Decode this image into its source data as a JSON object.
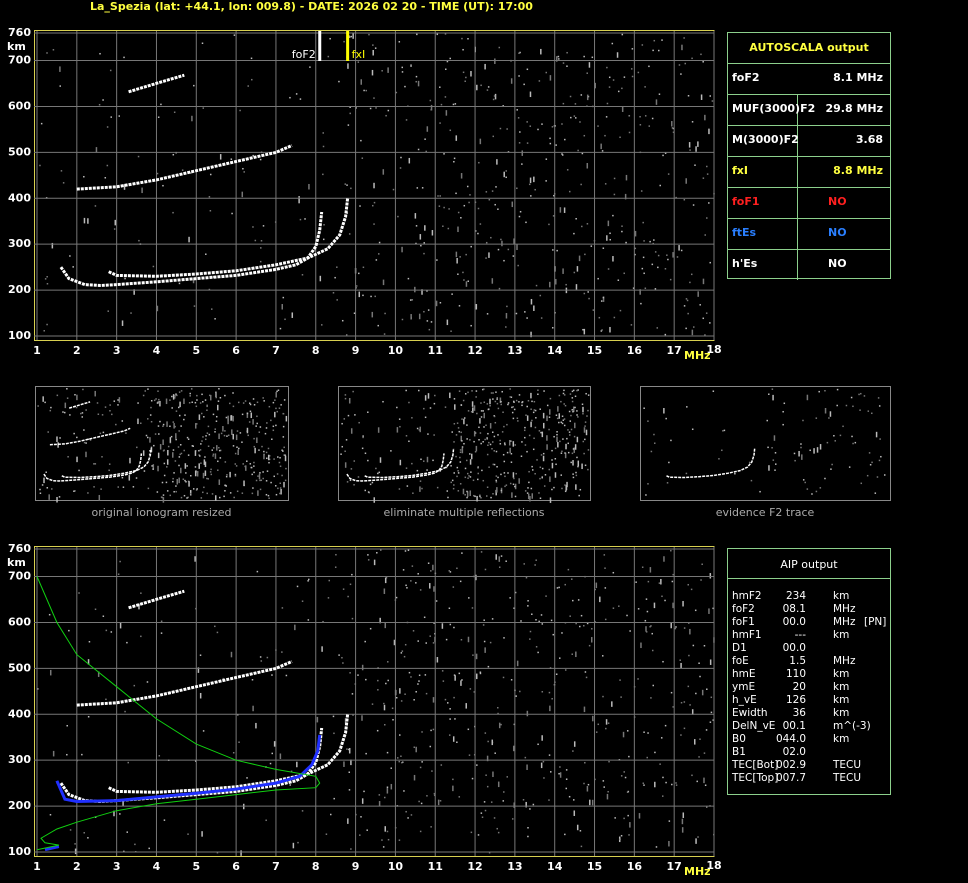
{
  "header": {
    "title": "La_Spezia (lat: +44.1, lon: 009.8) - DATE: 2026 02 20 - TIME (UT): 17:00"
  },
  "chart_data": [
    {
      "type": "line",
      "x_label": "MHz",
      "y_label": "km",
      "xlim": [
        1,
        18
      ],
      "ylim": [
        100,
        760
      ],
      "xticks": [
        1,
        2,
        3,
        4,
        5,
        6,
        7,
        8,
        9,
        10,
        11,
        12,
        13,
        14,
        15,
        16,
        17,
        18
      ],
      "yticks": [
        100,
        200,
        300,
        400,
        500,
        600,
        700,
        760
      ],
      "grid": true,
      "markers": [
        {
          "label": "foF2",
          "x": 8.1,
          "color": "#ffffff"
        },
        {
          "label": "fxI",
          "x": 8.8,
          "color": "#ffff00"
        }
      ],
      "series": [
        {
          "color": "#ffffff",
          "x": [
            1.6,
            1.8,
            2.2,
            2.6,
            3,
            4,
            5,
            6,
            7,
            7.5,
            7.8,
            8,
            8.1,
            8.15
          ],
          "values": [
            250,
            225,
            212,
            210,
            212,
            218,
            225,
            232,
            245,
            255,
            270,
            295,
            330,
            370
          ]
        },
        {
          "color": "#ffffff",
          "x": [
            2.8,
            3,
            4,
            5,
            6,
            7,
            7.8,
            8.3,
            8.6,
            8.75,
            8.8
          ],
          "values": [
            240,
            232,
            230,
            235,
            242,
            255,
            270,
            290,
            320,
            360,
            400
          ]
        },
        {
          "color": "#ffffff",
          "x": [
            2,
            3,
            4,
            5,
            6,
            7,
            7.4
          ],
          "values": [
            420,
            425,
            440,
            460,
            480,
            500,
            515
          ]
        },
        {
          "color": "#ffffff",
          "x": [
            3.3,
            3.8,
            4.3,
            4.7
          ],
          "values": [
            632,
            645,
            658,
            668
          ]
        }
      ]
    },
    {
      "type": "line",
      "x_label": "MHz",
      "y_label": "km",
      "xlim": [
        1,
        18
      ],
      "ylim": [
        100,
        760
      ],
      "xticks": [
        1,
        2,
        3,
        4,
        5,
        6,
        7,
        8,
        9,
        10,
        11,
        12,
        13,
        14,
        15,
        16,
        17,
        18
      ],
      "yticks": [
        100,
        200,
        300,
        400,
        500,
        600,
        700,
        760
      ],
      "grid": true,
      "series": [
        {
          "color": "#ffffff",
          "x": [
            1.6,
            1.8,
            2.2,
            2.6,
            3,
            4,
            5,
            6,
            7,
            7.5,
            7.8,
            8,
            8.1,
            8.15
          ],
          "values": [
            250,
            225,
            212,
            210,
            212,
            218,
            225,
            232,
            245,
            255,
            270,
            295,
            330,
            370
          ]
        },
        {
          "color": "#ffffff",
          "x": [
            2.8,
            3,
            4,
            5,
            6,
            7,
            7.8,
            8.3,
            8.6,
            8.75,
            8.8
          ],
          "values": [
            240,
            232,
            230,
            235,
            242,
            255,
            270,
            290,
            320,
            360,
            400
          ]
        },
        {
          "color": "#ffffff",
          "x": [
            2,
            3,
            4,
            5,
            6,
            7,
            7.4
          ],
          "values": [
            420,
            425,
            440,
            460,
            480,
            500,
            515
          ]
        },
        {
          "color": "#ffffff",
          "x": [
            3.3,
            3.8,
            4.3,
            4.7
          ],
          "values": [
            632,
            645,
            658,
            668
          ]
        },
        {
          "color": "#2030ff",
          "x": [
            1.2,
            1.55,
            null,
            1.5,
            1.7,
            2,
            3,
            4,
            5,
            6,
            7,
            7.6,
            7.9,
            8.05,
            8.1
          ],
          "values": [
            105,
            112,
            null,
            255,
            215,
            210,
            212,
            220,
            228,
            237,
            250,
            265,
            290,
            320,
            355
          ]
        },
        {
          "color": "#10d010",
          "x": [
            1,
            1.5,
            2,
            3,
            4,
            5,
            6,
            7,
            8,
            8.1,
            8,
            7,
            6,
            5,
            4,
            3,
            2,
            1.5,
            1.1,
            1.2,
            1.55,
            1
          ],
          "values": [
            700,
            600,
            530,
            460,
            390,
            335,
            300,
            280,
            265,
            250,
            240,
            235,
            225,
            215,
            205,
            190,
            165,
            150,
            130,
            120,
            115,
            105
          ]
        }
      ]
    }
  ],
  "thumbnails": [
    {
      "caption": "original ionogram resized"
    },
    {
      "caption": "eliminate multiple reflections"
    },
    {
      "caption": "evidence F2 trace"
    }
  ],
  "autoscala": {
    "title": "AUTOSCALA output",
    "rows": [
      {
        "label": "foF2",
        "value": "8.1 MHz",
        "color": "#ffffff"
      },
      {
        "label": "MUF(3000)F2",
        "value": "29.8 MHz",
        "color": "#ffffff"
      },
      {
        "label": "M(3000)F2",
        "value": "3.68",
        "color": "#ffffff"
      },
      {
        "label": "fxI",
        "value": "8.8 MHz",
        "color": "#ffff40"
      },
      {
        "label": "foF1",
        "value": "NO",
        "color": "#ff2020"
      },
      {
        "label": "ftEs",
        "value": "NO",
        "color": "#2a7fff"
      },
      {
        "label": "h'Es",
        "value": "NO",
        "color": "#ffffff"
      }
    ]
  },
  "aip": {
    "title": "AIP output",
    "rows": [
      [
        "hmF2",
        "234",
        "km"
      ],
      [
        "foF2",
        "08.1",
        "MHz"
      ],
      [
        "foF1",
        "00.0",
        "MHz",
        "[PN]"
      ],
      [
        "hmF1",
        "---",
        "km"
      ],
      [
        "D1",
        "00.0"
      ],
      [
        "foE",
        "1.5",
        "MHz"
      ],
      [
        "hmE",
        "110",
        "km"
      ],
      [
        "ymE",
        "20",
        "km"
      ],
      [
        "h_vE",
        "126",
        "km"
      ],
      [
        "Ewidth",
        "36",
        "km"
      ],
      [
        "DelN_vE",
        "00.1",
        "m^(-3)"
      ],
      [
        "B0",
        "044.0",
        "km"
      ],
      [
        "B1",
        "02.0"
      ],
      [
        "TEC[Bot]",
        "002.9",
        "TECU"
      ],
      [
        "TEC[Top]",
        "007.7",
        "TECU"
      ]
    ]
  }
}
